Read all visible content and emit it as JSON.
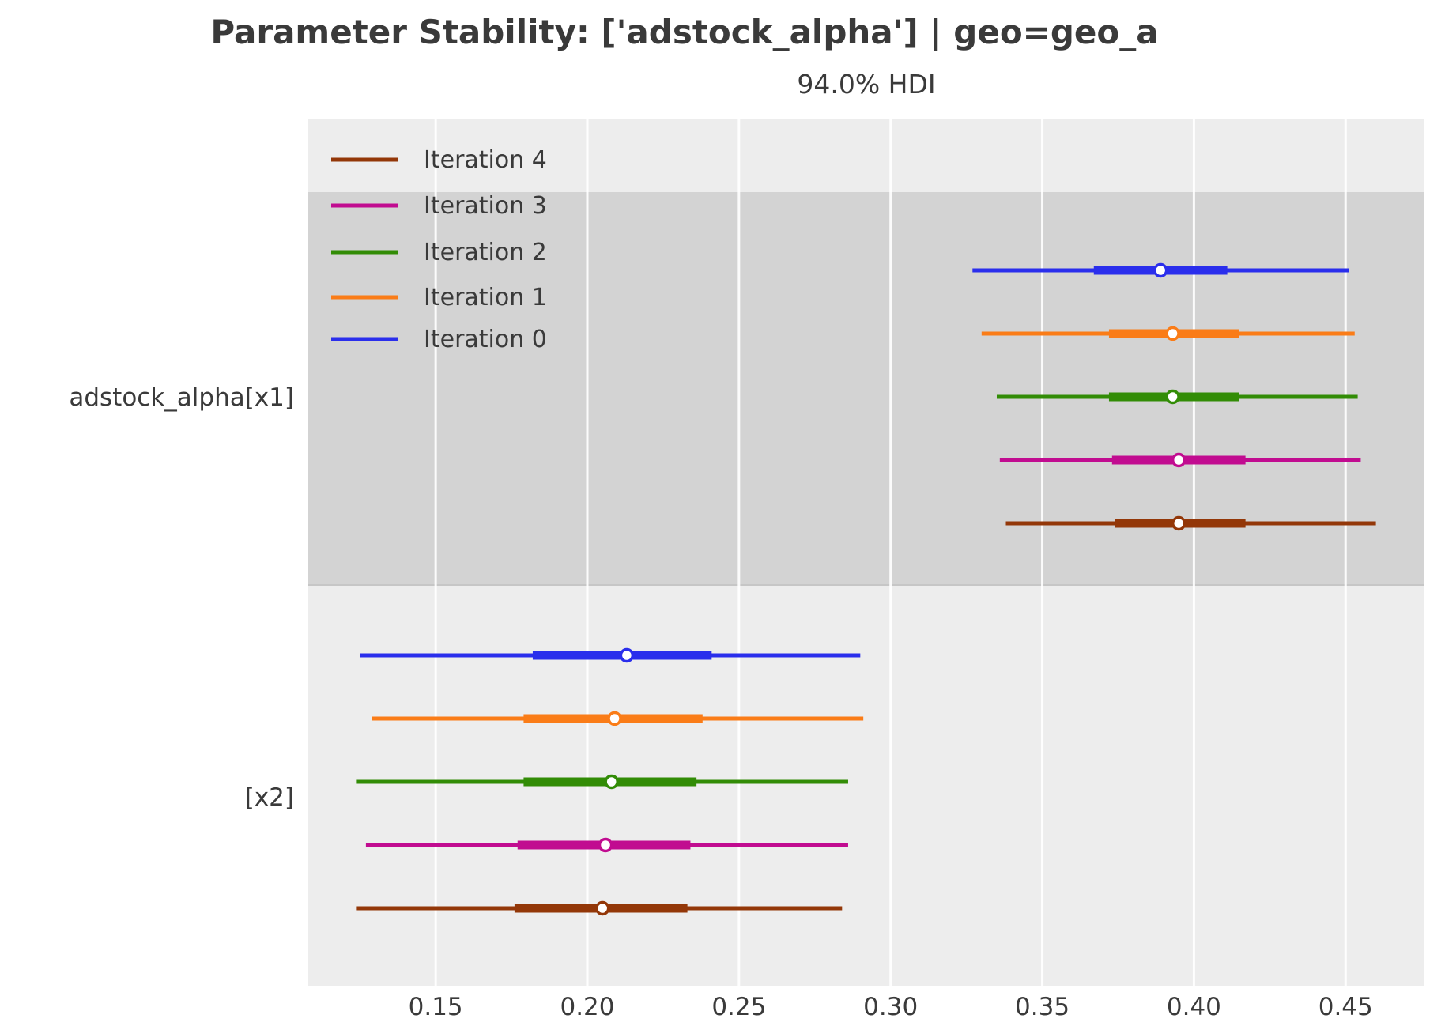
{
  "chart_data": {
    "type": "forest",
    "title": "Parameter Stability: ['adstock_alpha'] | geo=geo_a",
    "subtitle": "94.0% HDI",
    "hdi_probability": "94.0%",
    "xlabel": "",
    "ylabel": "",
    "xlim": [
      0.108,
      0.476
    ],
    "grid": "vertical-white",
    "x_ticks": [
      {
        "label": "0.15",
        "value": 0.15
      },
      {
        "label": "0.20",
        "value": 0.2
      },
      {
        "label": "0.25",
        "value": 0.25
      },
      {
        "label": "0.30",
        "value": 0.3
      },
      {
        "label": "0.35",
        "value": 0.35
      },
      {
        "label": "0.40",
        "value": 0.4
      },
      {
        "label": "0.45",
        "value": 0.45
      }
    ],
    "legend": {
      "position": "upper-left",
      "entries": [
        {
          "label": "Iteration 4",
          "color": "#933708"
        },
        {
          "label": "Iteration 3",
          "color": "#c10c90"
        },
        {
          "label": "Iteration 2",
          "color": "#328c06"
        },
        {
          "label": "Iteration 1",
          "color": "#fa7c17"
        },
        {
          "label": "Iteration 0",
          "color": "#2a2eec"
        }
      ]
    },
    "groups": [
      {
        "label": "adstock_alpha[x1]",
        "band": "dark",
        "rows": [
          {
            "series": "Iteration 0",
            "color": "#2a2eec",
            "hdi_low": 0.327,
            "quartile_low": 0.367,
            "median": 0.389,
            "quartile_high": 0.411,
            "hdi_high": 0.451
          },
          {
            "series": "Iteration 1",
            "color": "#fa7c17",
            "hdi_low": 0.33,
            "quartile_low": 0.372,
            "median": 0.393,
            "quartile_high": 0.415,
            "hdi_high": 0.453
          },
          {
            "series": "Iteration 2",
            "color": "#328c06",
            "hdi_low": 0.335,
            "quartile_low": 0.372,
            "median": 0.393,
            "quartile_high": 0.415,
            "hdi_high": 0.454
          },
          {
            "series": "Iteration 3",
            "color": "#c10c90",
            "hdi_low": 0.336,
            "quartile_low": 0.373,
            "median": 0.395,
            "quartile_high": 0.417,
            "hdi_high": 0.455
          },
          {
            "series": "Iteration 4",
            "color": "#933708",
            "hdi_low": 0.338,
            "quartile_low": 0.374,
            "median": 0.395,
            "quartile_high": 0.417,
            "hdi_high": 0.46
          }
        ]
      },
      {
        "label": "[x2]",
        "band": "light",
        "rows": [
          {
            "series": "Iteration 0",
            "color": "#2a2eec",
            "hdi_low": 0.125,
            "quartile_low": 0.182,
            "median": 0.213,
            "quartile_high": 0.241,
            "hdi_high": 0.29
          },
          {
            "series": "Iteration 1",
            "color": "#fa7c17",
            "hdi_low": 0.129,
            "quartile_low": 0.179,
            "median": 0.209,
            "quartile_high": 0.238,
            "hdi_high": 0.291
          },
          {
            "series": "Iteration 2",
            "color": "#328c06",
            "hdi_low": 0.124,
            "quartile_low": 0.179,
            "median": 0.208,
            "quartile_high": 0.236,
            "hdi_high": 0.286
          },
          {
            "series": "Iteration 3",
            "color": "#c10c90",
            "hdi_low": 0.127,
            "quartile_low": 0.177,
            "median": 0.206,
            "quartile_high": 0.234,
            "hdi_high": 0.286
          },
          {
            "series": "Iteration 4",
            "color": "#933708",
            "hdi_low": 0.124,
            "quartile_low": 0.176,
            "median": 0.205,
            "quartile_high": 0.233,
            "hdi_high": 0.284
          }
        ]
      }
    ],
    "style": {
      "band_light": "#ededed",
      "band_dark": "#d3d3d3",
      "band_border": "#c6c6c6",
      "grid_color": "#ffffff",
      "text_color": "#3a3a3a",
      "marker_fill": "#ffffff",
      "background": "#ffffff"
    }
  }
}
